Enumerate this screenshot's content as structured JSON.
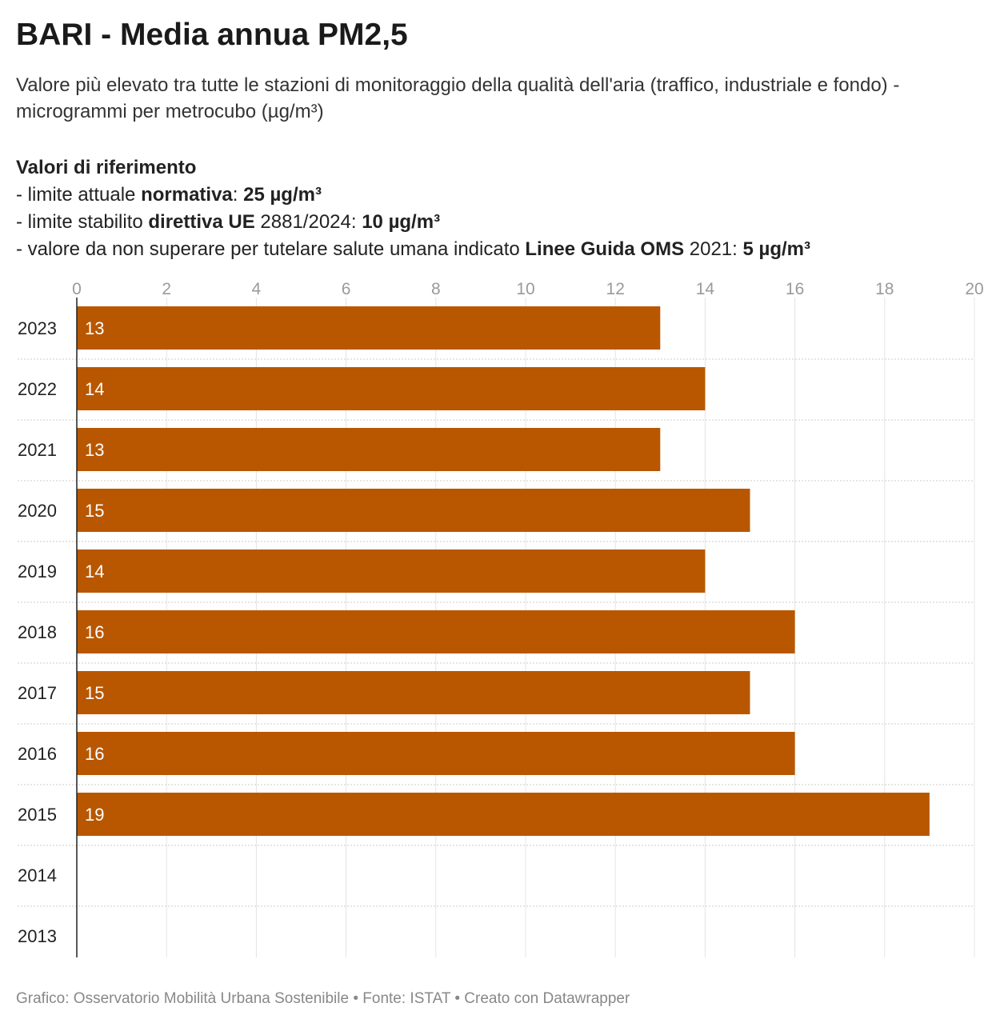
{
  "header": {
    "title": "BARI - Media annua PM2,5",
    "subtitle": "Valore più elevato tra tutte le stazioni di monitoraggio della qualità dell'aria (traffico, industriale e fondo) - microgrammi per metrocubo (µg/m³)"
  },
  "references": {
    "heading": "Valori di riferimento",
    "line1": {
      "prefix": "- limite attuale ",
      "bold1": "normativa",
      "mid": ": ",
      "bold2": "25 µg/m³"
    },
    "line2": {
      "prefix": "- limite stabilito ",
      "bold1": "direttiva UE",
      "mid": " 2881/2024: ",
      "bold2": "10 µg/m³"
    },
    "line3": {
      "prefix": "- valore da non superare per tutelare salute umana indicato ",
      "bold1": "Linee Guida OMS",
      "mid": " 2021: ",
      "bold2": "5 µg/m³"
    }
  },
  "footer": {
    "credit": "Grafico: Osservatorio Mobilità Urbana Sostenibile • Fonte: ISTAT • Creato con Datawrapper"
  },
  "chart_data": {
    "type": "bar",
    "orientation": "horizontal",
    "categories": [
      "2023",
      "2022",
      "2021",
      "2020",
      "2019",
      "2018",
      "2017",
      "2016",
      "2015",
      "2014",
      "2013"
    ],
    "values": [
      13,
      14,
      13,
      15,
      14,
      16,
      15,
      16,
      19,
      null,
      null
    ],
    "xlim": [
      0,
      20
    ],
    "xticks": [
      0,
      2,
      4,
      6,
      8,
      10,
      12,
      14,
      16,
      18,
      20
    ],
    "grid": true,
    "bar_color": "#b85700",
    "label_color": "#ffffff"
  }
}
